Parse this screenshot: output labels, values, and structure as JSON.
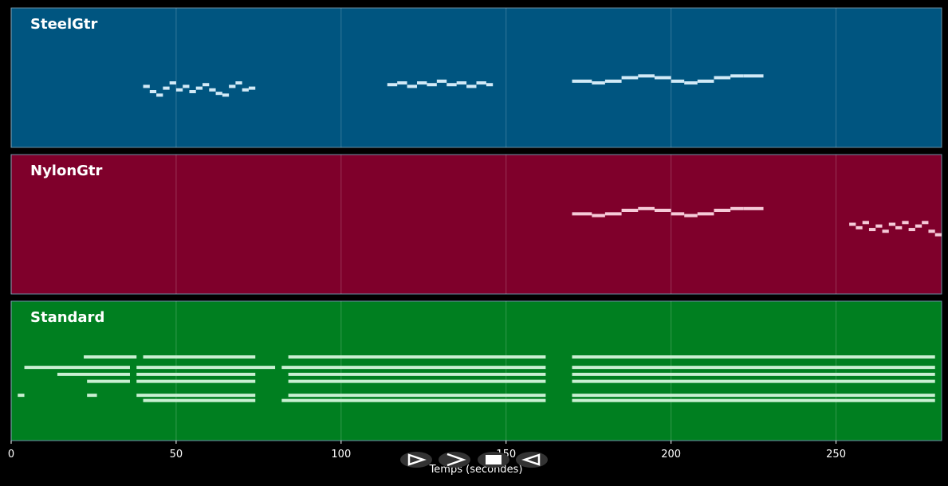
{
  "chart_data": {
    "type": "pianoroll",
    "xlabel": "Temps (secondes)",
    "xlim": [
      0,
      282
    ],
    "xticks": [
      0,
      50,
      100,
      150,
      200,
      250
    ],
    "ylim": [
      20,
      100
    ],
    "grid": true,
    "series": [
      {
        "name": "SteelGtr",
        "color": "#005580",
        "note_color": "#d2eaf7",
        "starts": [
          40,
          42,
          44,
          46,
          48,
          50,
          52,
          54,
          56,
          58,
          60,
          62,
          64,
          66,
          68,
          70,
          72,
          114,
          117,
          120,
          123,
          126,
          129,
          132,
          135,
          138,
          141,
          144,
          170,
          176,
          180,
          185,
          190,
          195,
          200,
          204,
          208,
          213,
          218,
          222
        ],
        "ends": [
          42,
          44,
          46,
          48,
          50,
          52,
          54,
          56,
          58,
          60,
          62,
          64,
          66,
          68,
          70,
          72,
          74,
          117,
          120,
          123,
          126,
          129,
          132,
          135,
          138,
          141,
          144,
          146,
          176,
          180,
          185,
          190,
          195,
          200,
          204,
          208,
          213,
          218,
          222,
          228
        ],
        "pitches": [
          55,
          52,
          50,
          54,
          57,
          53,
          55,
          52,
          54,
          56,
          53,
          51,
          50,
          55,
          57,
          53,
          54,
          56,
          57,
          55,
          57,
          56,
          58,
          56,
          57,
          55,
          57,
          56,
          58,
          57,
          58,
          60,
          61,
          60,
          58,
          57,
          58,
          60,
          61,
          61
        ]
      },
      {
        "name": "NylonGtr",
        "color": "#7f002b",
        "note_color": "#f6cad8",
        "starts": [
          170,
          176,
          180,
          185,
          190,
          195,
          200,
          204,
          208,
          213,
          218,
          222,
          254,
          256,
          258,
          260,
          262,
          264,
          266,
          268,
          270,
          272,
          274,
          276,
          278,
          280
        ],
        "ends": [
          176,
          180,
          185,
          190,
          195,
          200,
          204,
          208,
          213,
          218,
          222,
          228,
          256,
          258,
          260,
          262,
          264,
          266,
          268,
          270,
          272,
          274,
          276,
          278,
          280,
          282
        ],
        "pitches": [
          66,
          65,
          66,
          68,
          69,
          68,
          66,
          65,
          66,
          68,
          69,
          69,
          60,
          58,
          61,
          57,
          59,
          56,
          60,
          58,
          61,
          57,
          59,
          61,
          56,
          54
        ]
      },
      {
        "name": "Standard",
        "color": "#007f20",
        "note_color": "#c9efd2",
        "starts": [
          22,
          40,
          84,
          170,
          4,
          38,
          82,
          170,
          14,
          38,
          84,
          170,
          23,
          38,
          84,
          170,
          2,
          23,
          38,
          84,
          170,
          40,
          82,
          170
        ],
        "ends": [
          38,
          74,
          162,
          280,
          36,
          80,
          162,
          280,
          36,
          74,
          162,
          280,
          36,
          74,
          162,
          280,
          4,
          26,
          74,
          162,
          280,
          74,
          162,
          280
        ],
        "pitches": [
          68,
          68,
          68,
          68,
          62,
          62,
          62,
          62,
          58,
          58,
          58,
          58,
          54,
          54,
          54,
          54,
          46,
          46,
          46,
          46,
          46,
          43,
          43,
          43
        ]
      }
    ]
  }
}
